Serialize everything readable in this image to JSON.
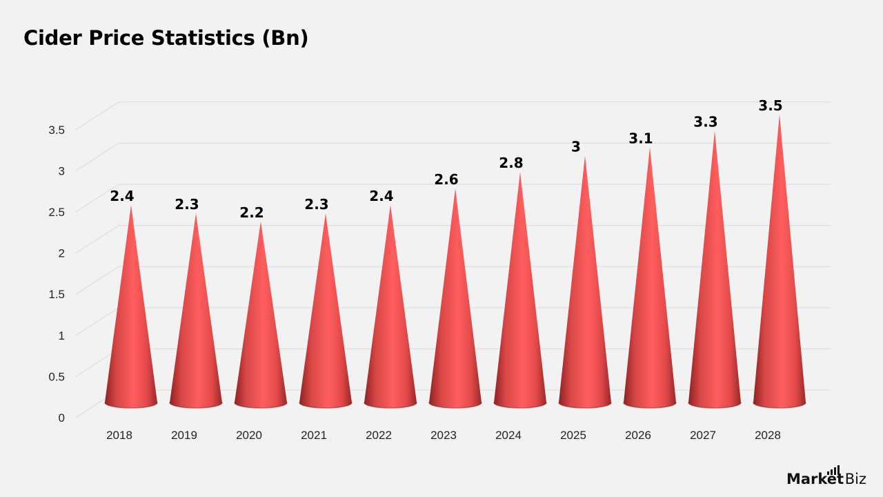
{
  "title": "Cider Price Statistics (Bn)",
  "brand": {
    "name_bold": "Market",
    "name_rest": ".Biz"
  },
  "colors": {
    "cone": "#f05555",
    "cone_dark": "#8e2222",
    "grid": "#d9d9d9",
    "background": "#f2f2f2"
  },
  "chart_data": {
    "type": "bar",
    "style": "3d-cone",
    "title": "Cider Price Statistics (Bn)",
    "categories": [
      "2018",
      "2019",
      "2020",
      "2021",
      "2022",
      "2023",
      "2024",
      "2025",
      "2026",
      "2027",
      "2028"
    ],
    "values": [
      2.4,
      2.3,
      2.2,
      2.3,
      2.4,
      2.6,
      2.8,
      3,
      3.1,
      3.3,
      3.5
    ],
    "data_labels": [
      "2.4",
      "2.3",
      "2.2",
      "2.3",
      "2.4",
      "2.6",
      "2.8",
      "3",
      "3.1",
      "3.3",
      "3.5"
    ],
    "yticks": [
      "0",
      "0.5",
      "1",
      "1.5",
      "2",
      "2.5",
      "3",
      "3.5"
    ],
    "ylim": [
      0,
      3.5
    ],
    "grid": true,
    "legend": "none"
  }
}
